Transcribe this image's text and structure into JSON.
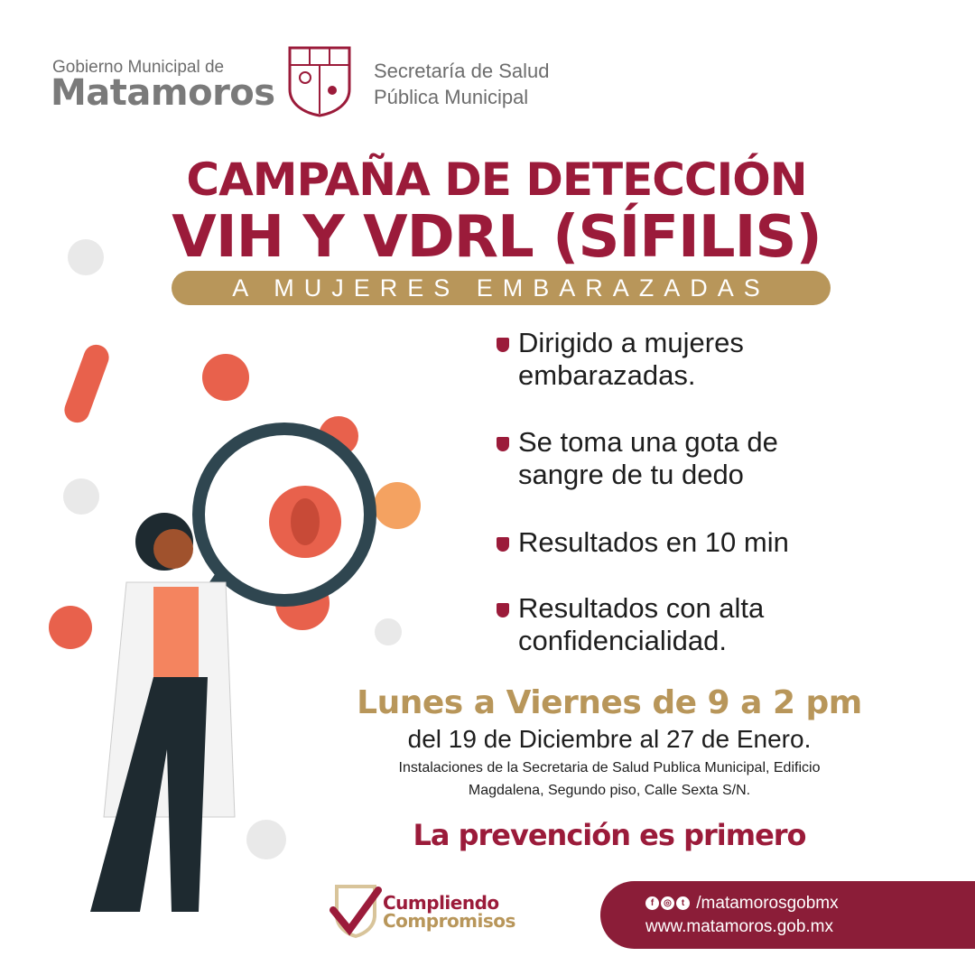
{
  "header": {
    "gob_small": "Gobierno Municipal de",
    "gob_big": "Matamoros",
    "sec_line1": "Secretaría de Salud",
    "sec_line2": "Pública Municipal"
  },
  "title": {
    "line1": "CAMPAÑA DE DETECCIÓN",
    "line2": "VIH Y VDRL (SÍFILIS)",
    "banner": "A MUJERES EMBARAZADAS"
  },
  "bullets": [
    {
      "l1": "Dirigido a mujeres",
      "l2": "embarazadas."
    },
    {
      "l1": "Se toma una gota de",
      "l2": "sangre de tu dedo"
    },
    {
      "l1": "Resultados en 10 min",
      "l2": ""
    },
    {
      "l1": "Resultados con alta",
      "l2": "confidencialidad."
    }
  ],
  "schedule": {
    "days": "Lunes a Viernes de 9 a 2 pm",
    "dates": "del 19 de Diciembre al 27 de Enero.",
    "address1": "Instalaciones de la Secretaria de Salud Publica Municipal, Edificio",
    "address2": "Magdalena, Segundo piso, Calle Sexta S/N."
  },
  "slogan": "La prevención es primero",
  "badge": {
    "line1": "Cumpliendo",
    "line2": "Compromisos"
  },
  "footer": {
    "social": "/matamorosgobmx",
    "web": "www.matamoros.gob.mx",
    "icons": [
      "facebook-icon",
      "instagram-icon",
      "twitter-icon"
    ]
  },
  "colors": {
    "crimson": "#9b1b3a",
    "gold": "#b8965a",
    "footer": "#8b1d38"
  }
}
